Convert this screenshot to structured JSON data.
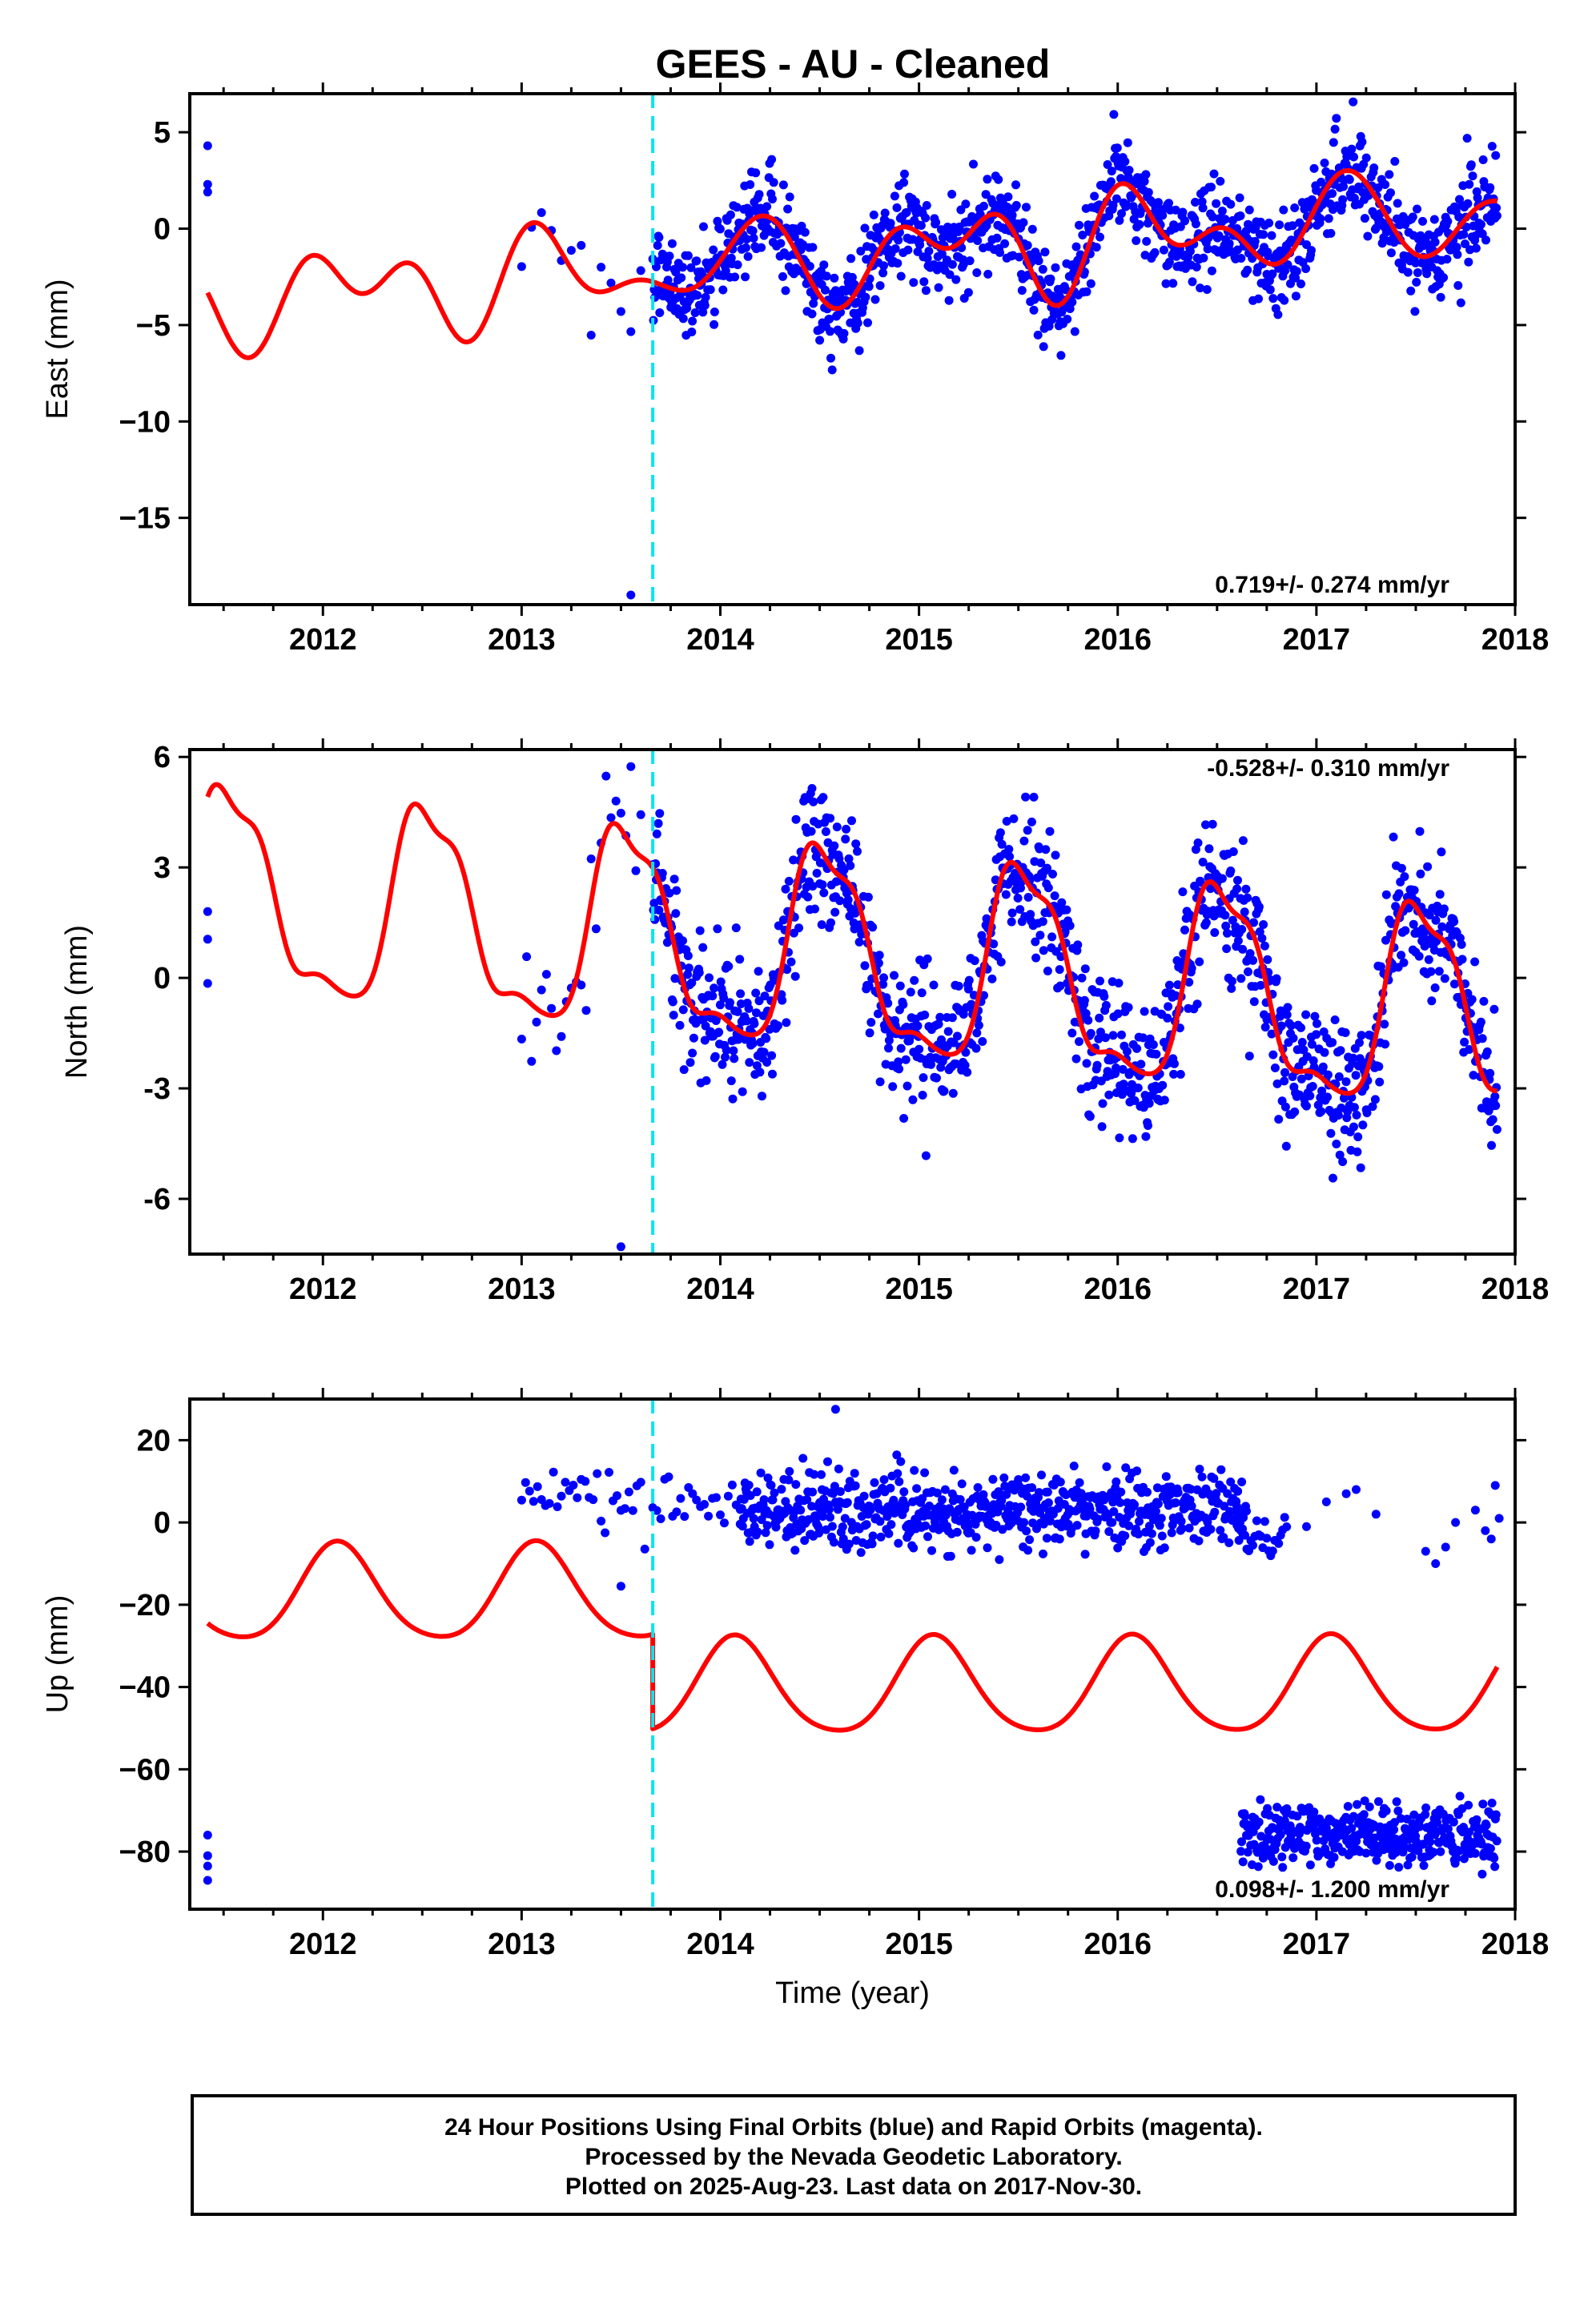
{
  "title": "GEES  - AU - Cleaned",
  "footer": {
    "line1": "24 Hour Positions Using Final Orbits (blue) and Rapid Orbits (magenta).",
    "line2": "Processed by the Nevada Geodetic Laboratory.",
    "line3": "Plotted on 2025-Aug-23. Last data on 2017-Nov-30."
  },
  "colors": {
    "final_points": "#0000ff",
    "model": "#ff0000",
    "event_line": "#00e5ee",
    "frame": "#000000"
  },
  "chart_data": [
    {
      "type": "scatter",
      "component": "east",
      "ylabel": "East (mm)",
      "xlabel": "",
      "xlim": [
        2011.33,
        2018.0
      ],
      "ylim": [
        -19.5,
        7
      ],
      "xticks": [
        2012,
        2013,
        2014,
        2015,
        2016,
        2017,
        2018
      ],
      "yticks": [
        5,
        0,
        -5,
        -10,
        -15
      ],
      "ytick_labels": [
        "5",
        "0",
        "−5",
        "−10",
        "−15"
      ],
      "rate_text": "0.719+/- 0.274 mm/yr",
      "event_line_x": 2013.66,
      "outliers": [
        [
          2011.42,
          4.3
        ],
        [
          2011.42,
          2.3
        ],
        [
          2011.42,
          1.9
        ],
        [
          2013.55,
          -19.0
        ]
      ],
      "model": {
        "x0": 2011.42,
        "x1": 2017.91,
        "step": 0.01,
        "offset": -1.25,
        "trend": 0.719,
        "t_ref": 2014.9,
        "annual": [
          1.3,
          1.0
        ],
        "semiannual": [
          -0.2,
          0.35
        ],
        "extra": [
          [
            1.7,
            1.3,
            0.4
          ]
        ]
      },
      "scatter": {
        "segments": [
          [
            2013.0,
            2013.62,
            0.05
          ],
          [
            2013.66,
            2017.91,
            0.0035
          ]
        ],
        "noise_sd": 1.2,
        "seed": 101
      },
      "xlabels_bottom": [
        "2012",
        "2013",
        "2014",
        "2015",
        "2016",
        "2017",
        "2018"
      ]
    },
    {
      "type": "scatter",
      "component": "north",
      "ylabel": "North (mm)",
      "xlabel": "",
      "xlim": [
        2011.33,
        2018.0
      ],
      "ylim": [
        -7.5,
        6.2
      ],
      "xticks": [
        2012,
        2013,
        2014,
        2015,
        2016,
        2017,
        2018
      ],
      "yticks": [
        6,
        3,
        0,
        -3,
        -6
      ],
      "ytick_labels": [
        "6",
        "3",
        "0",
        "-3",
        "-6"
      ],
      "rate_text": "-0.528+/- 0.310 mm/yr",
      "event_line_x": 2013.66,
      "outliers": [
        [
          2011.42,
          1.8
        ],
        [
          2011.42,
          1.05
        ],
        [
          2011.42,
          -0.15
        ],
        [
          2013.5,
          -7.3
        ]
      ],
      "model": {
        "x0": 2011.42,
        "x1": 2017.91,
        "step": 0.005,
        "offset": 0.3,
        "trend": -0.528,
        "t_ref": 2014.9,
        "annual": [
          -0.7,
          -2.6
        ],
        "semiannual": [
          0.0,
          0.6
        ],
        "extra": [
          [
            3.0,
            0.35,
            0.2
          ],
          [
            4.0,
            -0.2,
            0.0
          ]
        ]
      },
      "scatter": {
        "segments": [
          [
            2013.0,
            2013.62,
            0.025
          ],
          [
            2013.66,
            2017.91,
            0.0035
          ]
        ],
        "noise_sd": 0.95,
        "seed": 202
      },
      "xlabels_bottom": [
        "2012",
        "2013",
        "2014",
        "2015",
        "2016",
        "2017",
        "2018"
      ]
    },
    {
      "type": "scatter",
      "component": "up",
      "ylabel": "Up (mm)",
      "xlabel": "Time (year)",
      "xlim": [
        2011.33,
        2018.0
      ],
      "ylim": [
        -94,
        30
      ],
      "xticks": [
        2012,
        2013,
        2014,
        2015,
        2016,
        2017,
        2018
      ],
      "yticks": [
        20,
        0,
        -20,
        -40,
        -60,
        -80
      ],
      "ytick_labels": [
        "20",
        "0",
        "−20",
        "−40",
        "−60",
        "−80"
      ],
      "rate_text": "0.098+/- 1.200 mm/yr",
      "event_line_x": 2013.66,
      "outliers": [
        [
          2011.42,
          -76.0
        ],
        [
          2011.42,
          -81.0
        ],
        [
          2011.42,
          -83.5
        ],
        [
          2011.42,
          -87.0
        ],
        [
          2014.58,
          27.5
        ],
        [
          2013.5,
          -15.5
        ]
      ],
      "model": {
        "x0": 2011.42,
        "x1": 2017.91,
        "step": 0.01,
        "offset": -17.5,
        "trend": 0.098,
        "t_ref": 2014.9,
        "annual": [
          2.5,
          6.2
        ],
        "semiannual": [
          1.2,
          1.2
        ],
        "extra": [
          [
            1.0,
            3.0,
            4.0
          ]
        ],
        "step_at": 2013.66,
        "step_size": -23.0
      },
      "scatter": {
        "segments": [
          [
            2013.0,
            2013.62,
            0.02,
            5,
            4
          ],
          [
            2013.66,
            2014.1,
            0.02,
            4,
            4
          ],
          [
            2014.1,
            2016.65,
            0.004,
            3,
            4.5
          ],
          [
            2016.6,
            2016.85,
            0.01,
            -4,
            3
          ],
          [
            2016.62,
            2017.91,
            0.0035,
            -76,
            3.8
          ]
        ],
        "sparse": [
          [
            2017.05,
            5
          ],
          [
            2017.15,
            7
          ],
          [
            2017.2,
            8
          ],
          [
            2017.3,
            2
          ],
          [
            2016.95,
            -1
          ],
          [
            2017.55,
            -7
          ],
          [
            2017.6,
            -10
          ],
          [
            2017.65,
            -6
          ],
          [
            2017.7,
            0
          ],
          [
            2017.8,
            3
          ],
          [
            2017.85,
            -2
          ],
          [
            2017.88,
            -4
          ],
          [
            2017.9,
            9
          ],
          [
            2017.92,
            1
          ]
        ],
        "seed": 303
      },
      "xlabels_bottom": [
        "2012",
        "2013",
        "2014",
        "2015",
        "2016",
        "2017",
        "2018"
      ]
    }
  ]
}
